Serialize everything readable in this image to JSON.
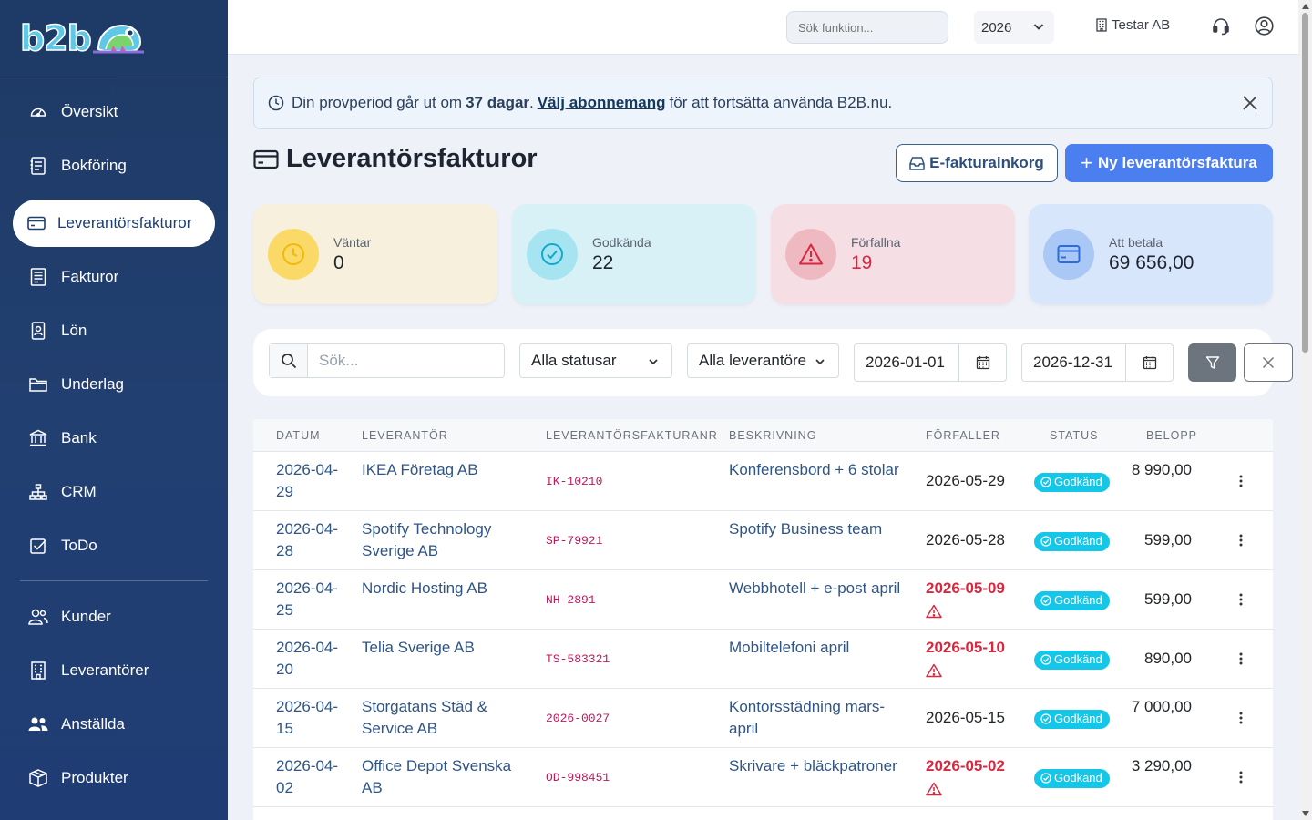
{
  "brand": {
    "logo_text": "b2b"
  },
  "sidebar": {
    "items": [
      {
        "label": "Översikt",
        "icon": "gauge-icon"
      },
      {
        "label": "Bokföring",
        "icon": "journal-icon"
      },
      {
        "label": "Leverantörsfakturor",
        "icon": "credit-card-icon",
        "active": true
      },
      {
        "label": "Fakturor",
        "icon": "invoice-icon"
      },
      {
        "label": "Lön",
        "icon": "badge-icon"
      },
      {
        "label": "Underlag",
        "icon": "folder-icon"
      },
      {
        "label": "Bank",
        "icon": "bank-icon"
      },
      {
        "label": "CRM",
        "icon": "network-icon"
      },
      {
        "label": "ToDo",
        "icon": "checkbox-icon"
      },
      {
        "label": "Kunder",
        "icon": "people-icon"
      },
      {
        "label": "Leverantörer",
        "icon": "building-icon"
      },
      {
        "label": "Anställda",
        "icon": "people-fill-icon"
      },
      {
        "label": "Produkter",
        "icon": "box-icon"
      }
    ]
  },
  "topbar": {
    "search_placeholder": "Sök funktion...",
    "year": "2026",
    "company": "Testar AB"
  },
  "banner": {
    "text_before": "Din provperiod går ut om",
    "days": "37 dagar",
    "period": ".",
    "link": "Välj abonnemang",
    "text_after": "för att fortsätta använda B2B.nu."
  },
  "page": {
    "title": "Leverantörsfakturor",
    "einbox_label": "E-fakturainkorg",
    "new_label": "Ny leverantörsfaktura"
  },
  "stats": [
    {
      "label": "Väntar",
      "value": "0",
      "color": "#fbd967"
    },
    {
      "label": "Godkända",
      "value": "22",
      "color": "#a6e4f2"
    },
    {
      "label": "Förfallna",
      "value": "19",
      "color": "#efb9c2"
    },
    {
      "label": "Att betala",
      "value": "69 656,00",
      "color": "#a9c8f6"
    }
  ],
  "filters": {
    "search_placeholder": "Sök...",
    "status_value": "Alla statusar",
    "supplier_value": "Alla leverantöre",
    "date_from": "2026-01-01",
    "date_to": "2026-12-31"
  },
  "table": {
    "headers": [
      "Datum",
      "Leverantör",
      "Leverantörsfakturanr",
      "Beskrivning",
      "Förfaller",
      "Status",
      "Belopp"
    ],
    "rows": [
      {
        "date": "2026-04-29",
        "supplier": "IKEA Företag AB",
        "nr": "IK-10210",
        "desc": "Konferensbord + 6 stolar",
        "due": "2026-05-29",
        "overdue": false,
        "status": "Godkänd",
        "amount": "8 990,00"
      },
      {
        "date": "2026-04-28",
        "supplier": "Spotify Technology Sverige AB",
        "nr": "SP-79921",
        "desc": "Spotify Business team",
        "due": "2026-05-28",
        "overdue": false,
        "status": "Godkänd",
        "amount": "599,00"
      },
      {
        "date": "2026-04-25",
        "supplier": "Nordic Hosting AB",
        "nr": "NH-2891",
        "desc": "Webbhotell + e-post april",
        "due": "2026-05-09",
        "overdue": true,
        "status": "Godkänd",
        "amount": "599,00"
      },
      {
        "date": "2026-04-20",
        "supplier": "Telia Sverige AB",
        "nr": "TS-583321",
        "desc": "Mobiltelefoni april",
        "due": "2026-05-10",
        "overdue": true,
        "status": "Godkänd",
        "amount": "890,00"
      },
      {
        "date": "2026-04-15",
        "supplier": "Storgatans Städ & Service AB",
        "nr": "2026-0027",
        "desc": "Kontorsstädning mars-april",
        "due": "2026-05-15",
        "overdue": false,
        "status": "Godkänd",
        "amount": "7 000,00"
      },
      {
        "date": "2026-04-02",
        "supplier": "Office Depot Svenska AB",
        "nr": "OD-998451",
        "desc": "Skrivare + bläckpatroner",
        "due": "2026-05-02",
        "overdue": true,
        "status": "Godkänd",
        "amount": "3 290,00"
      }
    ]
  }
}
